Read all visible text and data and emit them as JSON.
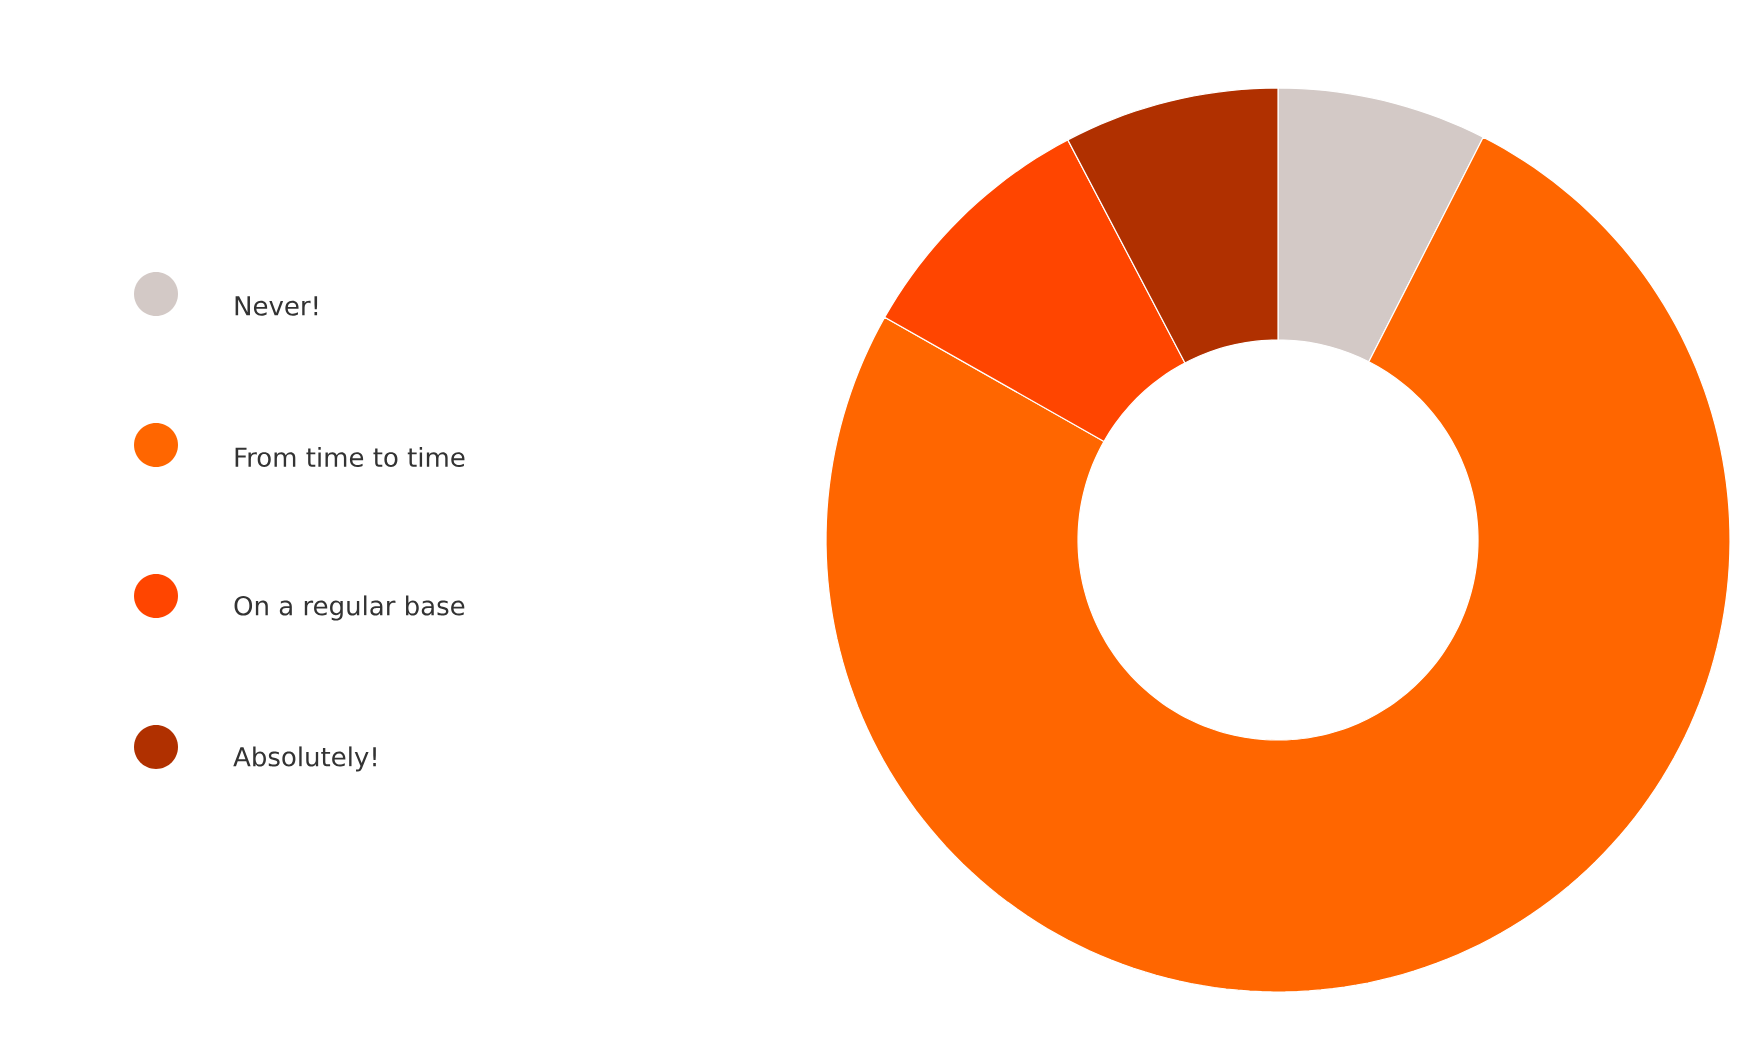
{
  "chart_data": {
    "type": "donut",
    "categories": [
      "Never!",
      "From time to time",
      "On a regular base",
      "Absolutely!"
    ],
    "values": [
      7.5,
      75.7,
      9.1,
      7.7
    ],
    "colors": [
      "#d3c9c6",
      "#ff6600",
      "#ff4500",
      "#b03000"
    ],
    "legend": "left"
  }
}
